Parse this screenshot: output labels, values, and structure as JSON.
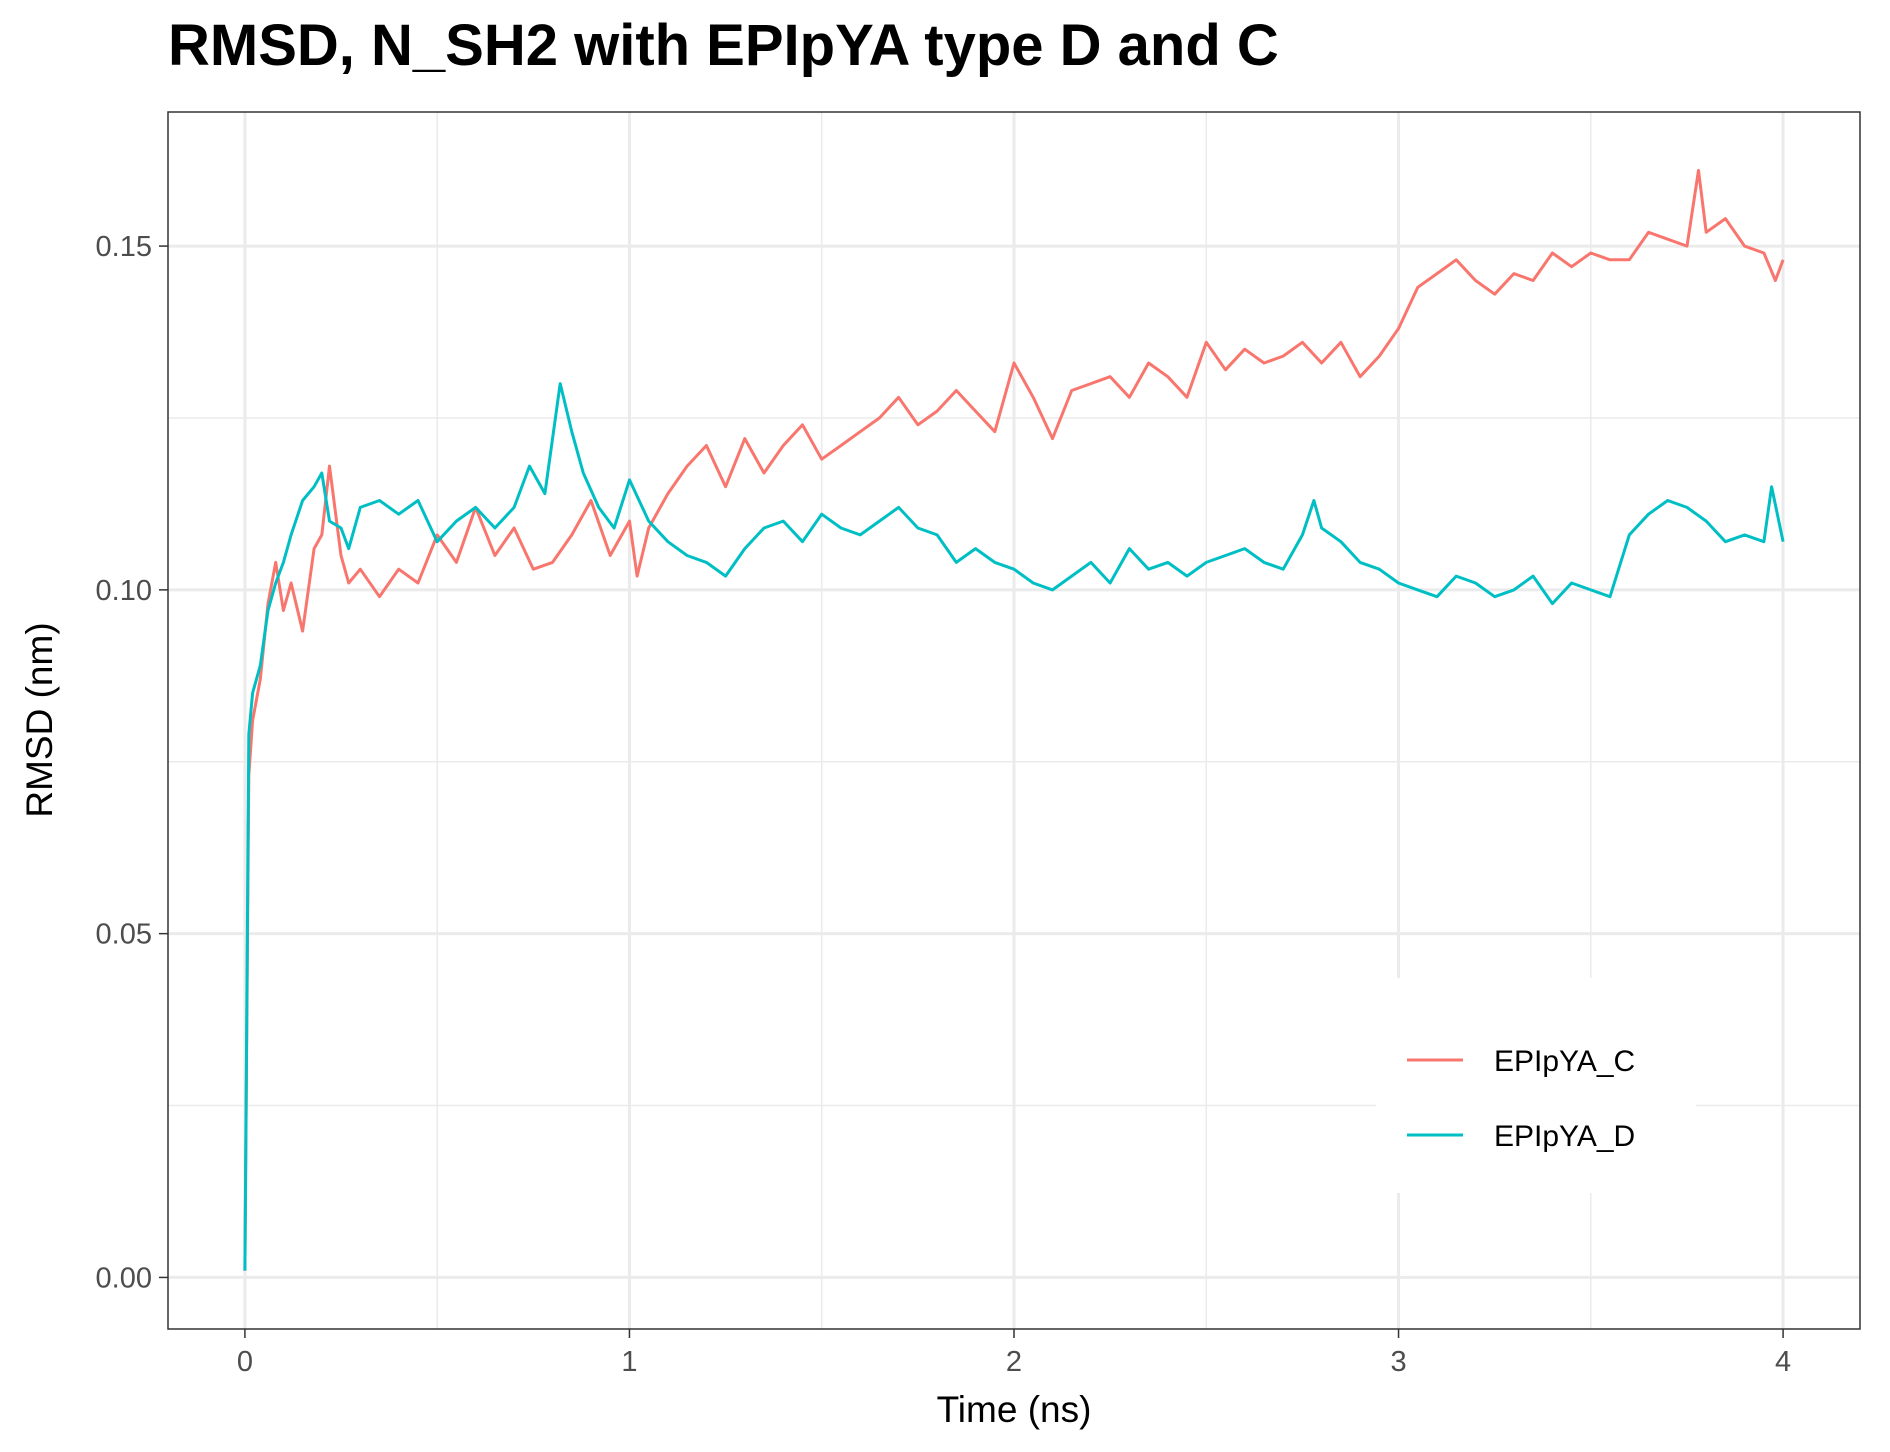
{
  "chart_data": {
    "type": "line",
    "title": "RMSD, N_SH2 with EPIpYA type D and C",
    "xlabel": "Time (ns)",
    "ylabel": "RMSD (nm)",
    "xlim": [
      -0.2,
      4.2
    ],
    "ylim": [
      -0.0075,
      0.1695
    ],
    "x_ticks": [
      0,
      1,
      2,
      3,
      4
    ],
    "x_tick_labels": [
      "0",
      "1",
      "2",
      "3",
      "4"
    ],
    "y_ticks": [
      0.0,
      0.05,
      0.1,
      0.15
    ],
    "y_tick_labels": [
      "0.00",
      "0.05",
      "0.10",
      "0.15"
    ],
    "grid": true,
    "legend_position": "bottom-right",
    "series": [
      {
        "name": "EPIpYA_C",
        "color": "#F8766D",
        "x": [
          0,
          0.01,
          0.02,
          0.04,
          0.06,
          0.08,
          0.1,
          0.12,
          0.15,
          0.18,
          0.2,
          0.22,
          0.25,
          0.27,
          0.3,
          0.35,
          0.4,
          0.45,
          0.5,
          0.55,
          0.6,
          0.65,
          0.7,
          0.75,
          0.8,
          0.85,
          0.9,
          0.95,
          1.0,
          1.02,
          1.05,
          1.1,
          1.15,
          1.2,
          1.25,
          1.3,
          1.35,
          1.4,
          1.45,
          1.5,
          1.55,
          1.6,
          1.65,
          1.7,
          1.75,
          1.8,
          1.85,
          1.9,
          1.95,
          2.0,
          2.05,
          2.1,
          2.15,
          2.2,
          2.25,
          2.3,
          2.35,
          2.4,
          2.45,
          2.5,
          2.55,
          2.6,
          2.65,
          2.7,
          2.75,
          2.8,
          2.85,
          2.9,
          2.95,
          3.0,
          3.05,
          3.1,
          3.15,
          3.2,
          3.25,
          3.3,
          3.35,
          3.4,
          3.45,
          3.5,
          3.55,
          3.6,
          3.65,
          3.7,
          3.75,
          3.78,
          3.8,
          3.85,
          3.9,
          3.95,
          3.98,
          4.0
        ],
        "values": [
          0.001,
          0.073,
          0.081,
          0.087,
          0.098,
          0.104,
          0.097,
          0.101,
          0.094,
          0.106,
          0.108,
          0.118,
          0.105,
          0.101,
          0.103,
          0.099,
          0.103,
          0.101,
          0.108,
          0.104,
          0.112,
          0.105,
          0.109,
          0.103,
          0.104,
          0.108,
          0.113,
          0.105,
          0.11,
          0.102,
          0.109,
          0.114,
          0.118,
          0.121,
          0.115,
          0.122,
          0.117,
          0.121,
          0.124,
          0.119,
          0.121,
          0.123,
          0.125,
          0.128,
          0.124,
          0.126,
          0.129,
          0.126,
          0.123,
          0.133,
          0.128,
          0.122,
          0.129,
          0.13,
          0.131,
          0.128,
          0.133,
          0.131,
          0.128,
          0.136,
          0.132,
          0.135,
          0.133,
          0.134,
          0.136,
          0.133,
          0.136,
          0.131,
          0.134,
          0.138,
          0.144,
          0.146,
          0.148,
          0.145,
          0.143,
          0.146,
          0.145,
          0.149,
          0.147,
          0.149,
          0.148,
          0.148,
          0.152,
          0.151,
          0.15,
          0.161,
          0.152,
          0.154,
          0.15,
          0.149,
          0.145,
          0.148
        ]
      },
      {
        "name": "EPIpYA_D",
        "color": "#00BFC4",
        "x": [
          0,
          0.01,
          0.02,
          0.04,
          0.06,
          0.08,
          0.1,
          0.12,
          0.15,
          0.18,
          0.2,
          0.22,
          0.25,
          0.27,
          0.3,
          0.35,
          0.4,
          0.45,
          0.5,
          0.55,
          0.6,
          0.65,
          0.7,
          0.74,
          0.78,
          0.82,
          0.85,
          0.88,
          0.92,
          0.96,
          1.0,
          1.05,
          1.1,
          1.15,
          1.2,
          1.25,
          1.3,
          1.35,
          1.4,
          1.45,
          1.5,
          1.55,
          1.6,
          1.65,
          1.7,
          1.75,
          1.8,
          1.85,
          1.9,
          1.95,
          2.0,
          2.05,
          2.1,
          2.15,
          2.2,
          2.25,
          2.3,
          2.35,
          2.4,
          2.45,
          2.5,
          2.55,
          2.6,
          2.65,
          2.7,
          2.75,
          2.78,
          2.8,
          2.85,
          2.9,
          2.95,
          3.0,
          3.05,
          3.1,
          3.15,
          3.2,
          3.25,
          3.3,
          3.35,
          3.4,
          3.45,
          3.5,
          3.55,
          3.6,
          3.65,
          3.7,
          3.75,
          3.8,
          3.85,
          3.9,
          3.95,
          3.97,
          4.0
        ],
        "values": [
          0.001,
          0.079,
          0.085,
          0.089,
          0.097,
          0.101,
          0.104,
          0.108,
          0.113,
          0.115,
          0.117,
          0.11,
          0.109,
          0.106,
          0.112,
          0.113,
          0.111,
          0.113,
          0.107,
          0.11,
          0.112,
          0.109,
          0.112,
          0.118,
          0.114,
          0.13,
          0.123,
          0.117,
          0.112,
          0.109,
          0.116,
          0.11,
          0.107,
          0.105,
          0.104,
          0.102,
          0.106,
          0.109,
          0.11,
          0.107,
          0.111,
          0.109,
          0.108,
          0.11,
          0.112,
          0.109,
          0.108,
          0.104,
          0.106,
          0.104,
          0.103,
          0.101,
          0.1,
          0.102,
          0.104,
          0.101,
          0.106,
          0.103,
          0.104,
          0.102,
          0.104,
          0.105,
          0.106,
          0.104,
          0.103,
          0.108,
          0.113,
          0.109,
          0.107,
          0.104,
          0.103,
          0.101,
          0.1,
          0.099,
          0.102,
          0.101,
          0.099,
          0.1,
          0.102,
          0.098,
          0.101,
          0.1,
          0.099,
          0.108,
          0.111,
          0.113,
          0.112,
          0.11,
          0.107,
          0.108,
          0.107,
          0.115,
          0.107
        ]
      }
    ]
  },
  "legend": {
    "items": [
      "EPIpYA_C",
      "EPIpYA_D"
    ]
  }
}
